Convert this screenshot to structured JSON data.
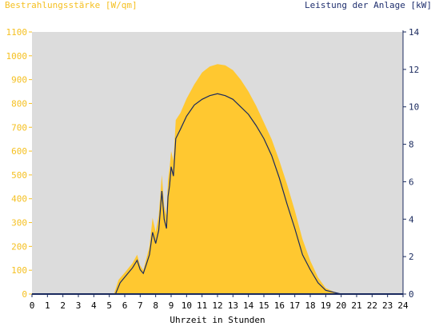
{
  "chart_data": {
    "type": "area",
    "left_axis_label": "Bestrahlungsstärke [W/qm]",
    "right_axis_label": "Leistung der Anlage [kW]",
    "xlabel": "Uhrzeit in Stunden",
    "xlim": [
      0,
      24
    ],
    "ylim_left": [
      0,
      1100
    ],
    "ylim_right": [
      0,
      14
    ],
    "x_ticks": [
      "0",
      "1",
      "2",
      "3",
      "4",
      "5",
      "6",
      "7",
      "8",
      "9",
      "10",
      "11",
      "12",
      "13",
      "14",
      "15",
      "16",
      "17",
      "18",
      "19",
      "20",
      "21",
      "22",
      "23",
      "24"
    ],
    "y_ticks_left": [
      "0",
      "100",
      "200",
      "300",
      "400",
      "500",
      "600",
      "700",
      "800",
      "900",
      "1000",
      "1100"
    ],
    "y_ticks_right": [
      "0",
      "2",
      "4",
      "6",
      "8",
      "10",
      "12",
      "14"
    ],
    "grid": false,
    "plot_background": "#dcdcdc",
    "series": [
      {
        "name": "Bestrahlungsstärke [W/qm]",
        "axis": "left",
        "style": "area",
        "color": "#ffc830",
        "points": [
          [
            0,
            0
          ],
          [
            5.3,
            0
          ],
          [
            5.6,
            60
          ],
          [
            6.0,
            90
          ],
          [
            6.5,
            130
          ],
          [
            6.8,
            165
          ],
          [
            7.0,
            120
          ],
          [
            7.2,
            100
          ],
          [
            7.4,
            150
          ],
          [
            7.6,
            200
          ],
          [
            7.8,
            320
          ],
          [
            8.0,
            260
          ],
          [
            8.2,
            330
          ],
          [
            8.4,
            500
          ],
          [
            8.55,
            370
          ],
          [
            8.7,
            330
          ],
          [
            8.8,
            480
          ],
          [
            8.9,
            530
          ],
          [
            9.0,
            600
          ],
          [
            9.15,
            560
          ],
          [
            9.3,
            730
          ],
          [
            9.6,
            760
          ],
          [
            10,
            820
          ],
          [
            10.5,
            880
          ],
          [
            11,
            930
          ],
          [
            11.5,
            955
          ],
          [
            12,
            965
          ],
          [
            12.5,
            960
          ],
          [
            13,
            940
          ],
          [
            13.5,
            900
          ],
          [
            14,
            850
          ],
          [
            14.5,
            790
          ],
          [
            15,
            720
          ],
          [
            15.5,
            650
          ],
          [
            16,
            560
          ],
          [
            16.5,
            460
          ],
          [
            17,
            350
          ],
          [
            17.5,
            230
          ],
          [
            18,
            140
          ],
          [
            18.5,
            70
          ],
          [
            19,
            25
          ],
          [
            19.5,
            10
          ],
          [
            20,
            0
          ],
          [
            24,
            0
          ]
        ]
      },
      {
        "name": "Leistung der Anlage [kW]",
        "axis": "right",
        "style": "line",
        "color": "#1a2a5e",
        "points": [
          [
            0,
            0
          ],
          [
            5.4,
            0
          ],
          [
            5.7,
            0.6
          ],
          [
            6.0,
            0.9
          ],
          [
            6.5,
            1.4
          ],
          [
            6.8,
            1.8
          ],
          [
            7.0,
            1.3
          ],
          [
            7.2,
            1.1
          ],
          [
            7.4,
            1.6
          ],
          [
            7.6,
            2.1
          ],
          [
            7.8,
            3.3
          ],
          [
            8.0,
            2.7
          ],
          [
            8.2,
            3.4
          ],
          [
            8.4,
            5.5
          ],
          [
            8.55,
            4.0
          ],
          [
            8.7,
            3.5
          ],
          [
            8.8,
            5.2
          ],
          [
            8.9,
            5.8
          ],
          [
            9.0,
            6.8
          ],
          [
            9.15,
            6.3
          ],
          [
            9.3,
            8.3
          ],
          [
            9.6,
            8.8
          ],
          [
            10,
            9.5
          ],
          [
            10.5,
            10.1
          ],
          [
            11,
            10.4
          ],
          [
            11.5,
            10.6
          ],
          [
            12,
            10.7
          ],
          [
            12.5,
            10.6
          ],
          [
            13,
            10.4
          ],
          [
            13.5,
            10.0
          ],
          [
            14,
            9.6
          ],
          [
            14.5,
            9.0
          ],
          [
            15,
            8.3
          ],
          [
            15.5,
            7.4
          ],
          [
            16,
            6.2
          ],
          [
            16.5,
            4.8
          ],
          [
            17,
            3.5
          ],
          [
            17.5,
            2.1
          ],
          [
            18,
            1.3
          ],
          [
            18.5,
            0.6
          ],
          [
            19,
            0.2
          ],
          [
            19.5,
            0.1
          ],
          [
            20,
            0
          ],
          [
            24,
            0
          ]
        ]
      }
    ]
  }
}
